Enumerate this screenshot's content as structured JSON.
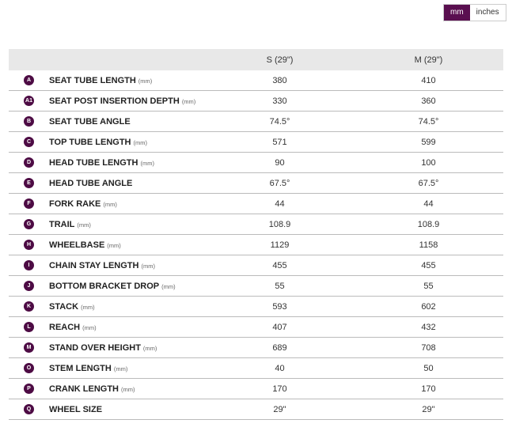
{
  "toggle": {
    "options": [
      "mm",
      "inches"
    ]
  },
  "table": {
    "columns": [
      "S (29\")",
      "M (29\")"
    ],
    "rows": [
      {
        "badge": "A",
        "label": "SEAT TUBE LENGTH",
        "unit": "(mm)",
        "values": [
          "380",
          "410"
        ]
      },
      {
        "badge": "A1",
        "label": "SEAT POST INSERTION DEPTH",
        "unit": "(mm)",
        "values": [
          "330",
          "360"
        ]
      },
      {
        "badge": "B",
        "label": "SEAT TUBE ANGLE",
        "values": [
          "74.5°",
          "74.5°"
        ]
      },
      {
        "badge": "C",
        "label": "TOP TUBE LENGTH",
        "unit": "(mm)",
        "values": [
          "571",
          "599"
        ]
      },
      {
        "badge": "D",
        "label": "HEAD TUBE LENGTH",
        "unit": "(mm)",
        "values": [
          "90",
          "100"
        ]
      },
      {
        "badge": "E",
        "label": "HEAD TUBE ANGLE",
        "values": [
          "67.5°",
          "67.5°"
        ]
      },
      {
        "badge": "F",
        "label": "FORK RAKE",
        "unit": "(mm)",
        "values": [
          "44",
          "44"
        ]
      },
      {
        "badge": "G",
        "label": "TRAIL",
        "unit": "(mm)",
        "values": [
          "108.9",
          "108.9"
        ]
      },
      {
        "badge": "H",
        "label": "WHEELBASE",
        "unit": "(mm)",
        "values": [
          "1129",
          "1158"
        ]
      },
      {
        "badge": "I",
        "label": "CHAIN STAY LENGTH",
        "unit": "(mm)",
        "values": [
          "455",
          "455"
        ]
      },
      {
        "badge": "J",
        "label": "BOTTOM BRACKET DROP",
        "unit": "(mm)",
        "values": [
          "55",
          "55"
        ]
      },
      {
        "badge": "K",
        "label": "STACK",
        "unit": "(mm)",
        "values": [
          "593",
          "602"
        ]
      },
      {
        "badge": "L",
        "label": "REACH",
        "unit": "(mm)",
        "values": [
          "407",
          "432"
        ]
      },
      {
        "badge": "M",
        "label": "STAND OVER HEIGHT",
        "unit": "(mm)",
        "values": [
          "689",
          "708"
        ]
      },
      {
        "badge": "O",
        "label": "STEM LENGTH",
        "unit": "(mm)",
        "values": [
          "40",
          "50"
        ]
      },
      {
        "badge": "P",
        "label": "CRANK LENGTH",
        "unit": "(mm)",
        "values": [
          "170",
          "170"
        ]
      },
      {
        "badge": "Q",
        "label": "WHEEL SIZE",
        "values": [
          "29\"",
          "29\""
        ]
      }
    ]
  }
}
